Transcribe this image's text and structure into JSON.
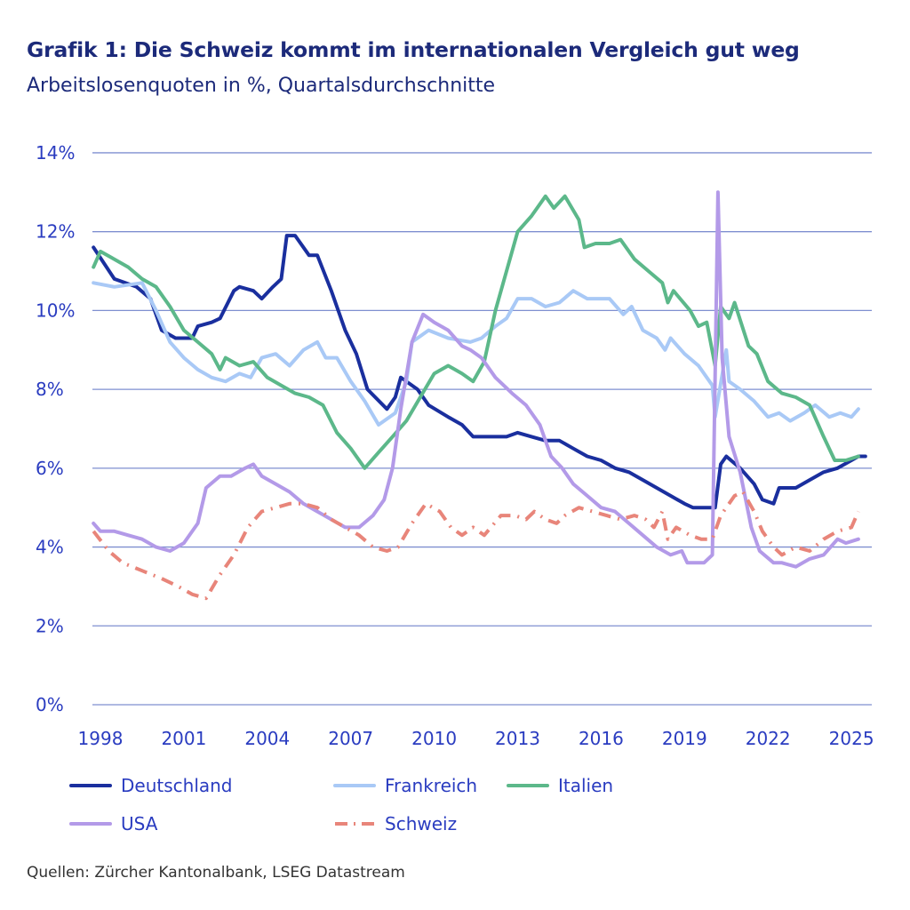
{
  "title": "Grafik 1: Die Schweiz kommt im internationalen Vergleich gut weg",
  "subtitle": "Arbeitslosenquoten in %, Quartalsdurchschnitte",
  "source": "Quellen: Zürcher Kantonalbank, LSEG Datastream",
  "chart_data": {
    "type": "line",
    "title": "Grafik 1: Die Schweiz kommt im internationalen Vergleich gut weg",
    "subtitle": "Arbeitslosenquoten in %, Quartalsdurchschnitte",
    "xlabel": "",
    "ylabel": "",
    "xlim": [
      1997.7,
      2025.5
    ],
    "ylim": [
      0,
      14
    ],
    "grid": true,
    "legend_position": "bottom",
    "x_ticks": [
      "1998",
      "2001",
      "2004",
      "2007",
      "2010",
      "2013",
      "2016",
      "2019",
      "2022",
      "2025"
    ],
    "y_ticks": [
      "0%",
      "2%",
      "4%",
      "6%",
      "8%",
      "10%",
      "12%",
      "14%"
    ],
    "series": [
      {
        "name": "Deutschland",
        "color": "#1a2f9e",
        "dash": "solid",
        "x": [
          1997.75,
          1998.5,
          1999.3,
          1999.8,
          2000.2,
          2000.7,
          2001.3,
          2001.5,
          2002,
          2002.3,
          2002.8,
          2003,
          2003.5,
          2003.8,
          2004.2,
          2004.5,
          2004.7,
          2005,
          2005.5,
          2005.8,
          2006.3,
          2006.8,
          2007.2,
          2007.6,
          2008.3,
          2008.6,
          2008.8,
          2009.4,
          2009.8,
          2010.5,
          2011,
          2011.4,
          2012,
          2012.6,
          2013,
          2013.5,
          2014,
          2014.5,
          2015,
          2015.5,
          2016,
          2016.5,
          2017,
          2017.5,
          2018,
          2018.5,
          2019,
          2019.3,
          2020.1,
          2020.3,
          2020.5,
          2021,
          2021.5,
          2021.8,
          2022.2,
          2022.4,
          2023,
          2023.5,
          2024,
          2024.5,
          2025,
          2025.25,
          2025.5
        ],
        "y": [
          11.6,
          10.8,
          10.6,
          10.3,
          9.5,
          9.3,
          9.3,
          9.6,
          9.7,
          9.8,
          10.5,
          10.6,
          10.5,
          10.3,
          10.6,
          10.8,
          11.9,
          11.9,
          11.4,
          11.4,
          10.5,
          9.5,
          8.9,
          8.0,
          7.5,
          7.8,
          8.3,
          8.0,
          7.6,
          7.3,
          7.1,
          6.8,
          6.8,
          6.8,
          6.9,
          6.8,
          6.7,
          6.7,
          6.5,
          6.3,
          6.2,
          6.0,
          5.9,
          5.7,
          5.5,
          5.3,
          5.1,
          5.0,
          5.0,
          6.1,
          6.3,
          6.0,
          5.6,
          5.2,
          5.1,
          5.5,
          5.5,
          5.7,
          5.9,
          6.0,
          6.2,
          6.3,
          6.3
        ]
      },
      {
        "name": "Frankreich",
        "color": "#a9c9f6",
        "dash": "solid",
        "x": [
          1997.75,
          1998.5,
          1999.5,
          2000,
          2000.5,
          2001,
          2001.5,
          2002,
          2002.5,
          2003,
          2003.4,
          2003.8,
          2004.3,
          2004.8,
          2005.3,
          2005.8,
          2006.1,
          2006.5,
          2007,
          2007.5,
          2008,
          2008.6,
          2009,
          2009.2,
          2009.8,
          2010.5,
          2011.3,
          2011.7,
          2012.2,
          2012.6,
          2013,
          2013.5,
          2014,
          2014.5,
          2015,
          2015.5,
          2016.3,
          2016.8,
          2017.1,
          2017.5,
          2018,
          2018.3,
          2018.5,
          2019,
          2019.5,
          2020,
          2020.1,
          2020.5,
          2020.6,
          2021,
          2021.5,
          2022,
          2022.4,
          2022.8,
          2023.3,
          2023.7,
          2024.2,
          2024.6,
          2025,
          2025.25
        ],
        "y": [
          10.7,
          10.6,
          10.7,
          10.0,
          9.2,
          8.8,
          8.5,
          8.3,
          8.2,
          8.4,
          8.3,
          8.8,
          8.9,
          8.6,
          9.0,
          9.2,
          8.8,
          8.8,
          8.2,
          7.7,
          7.1,
          7.4,
          8.2,
          9.2,
          9.5,
          9.3,
          9.2,
          9.3,
          9.6,
          9.8,
          10.3,
          10.3,
          10.1,
          10.2,
          10.5,
          10.3,
          10.3,
          9.9,
          10.1,
          9.5,
          9.3,
          9.0,
          9.3,
          8.9,
          8.6,
          8.1,
          7.3,
          9.0,
          8.2,
          8.0,
          7.7,
          7.3,
          7.4,
          7.2,
          7.4,
          7.6,
          7.3,
          7.4,
          7.3,
          7.5
        ]
      },
      {
        "name": "Italien",
        "color": "#5cb88a",
        "dash": "solid",
        "x": [
          1997.75,
          1998,
          1998.5,
          1999,
          1999.5,
          2000,
          2000.5,
          2001,
          2001.5,
          2002,
          2002.3,
          2002.5,
          2003,
          2003.5,
          2004,
          2004.5,
          2005,
          2005.5,
          2006,
          2006.5,
          2007,
          2007.5,
          2008,
          2008.5,
          2009,
          2009.5,
          2010,
          2010.5,
          2011,
          2011.4,
          2011.8,
          2012.2,
          2012.6,
          2013,
          2013.5,
          2014,
          2014.3,
          2014.7,
          2015.2,
          2015.4,
          2015.8,
          2016.3,
          2016.7,
          2017.2,
          2017.7,
          2018.2,
          2018.4,
          2018.6,
          2019.2,
          2019.5,
          2019.8,
          2020.1,
          2020.3,
          2020.6,
          2020.8,
          2021.3,
          2021.6,
          2022,
          2022.5,
          2023,
          2023.5,
          2024,
          2024.4,
          2024.8,
          2025.25
        ],
        "y": [
          11.1,
          11.5,
          11.3,
          11.1,
          10.8,
          10.6,
          10.1,
          9.5,
          9.2,
          8.9,
          8.5,
          8.8,
          8.6,
          8.7,
          8.3,
          8.1,
          7.9,
          7.8,
          7.6,
          6.9,
          6.5,
          6.0,
          6.4,
          6.8,
          7.2,
          7.8,
          8.4,
          8.6,
          8.4,
          8.2,
          8.7,
          10.0,
          11.0,
          12.0,
          12.4,
          12.9,
          12.6,
          12.9,
          12.3,
          11.6,
          11.7,
          11.7,
          11.8,
          11.3,
          11.0,
          10.7,
          10.2,
          10.5,
          10.0,
          9.6,
          9.7,
          8.6,
          10.1,
          9.8,
          10.2,
          9.1,
          8.9,
          8.2,
          7.9,
          7.8,
          7.6,
          6.8,
          6.2,
          6.2,
          6.3
        ]
      },
      {
        "name": "USA",
        "color": "#b39ae8",
        "dash": "solid",
        "x": [
          1997.75,
          1998,
          1998.5,
          1999,
          1999.5,
          2000,
          2000.5,
          2001,
          2001.5,
          2001.8,
          2002.3,
          2002.7,
          2003.2,
          2003.5,
          2003.8,
          2004.3,
          2004.8,
          2005.3,
          2005.8,
          2006.3,
          2006.8,
          2007.3,
          2007.8,
          2008.2,
          2008.5,
          2008.8,
          2009.2,
          2009.6,
          2010,
          2010.5,
          2011,
          2011.3,
          2011.7,
          2012.2,
          2012.8,
          2013.3,
          2013.8,
          2014.2,
          2014.6,
          2015,
          2015.5,
          2016,
          2016.5,
          2017,
          2017.5,
          2018,
          2018.5,
          2018.9,
          2019.1,
          2019.7,
          2020.0,
          2020.2,
          2020.35,
          2020.6,
          2021,
          2021.4,
          2021.7,
          2022.2,
          2022.5,
          2023,
          2023.5,
          2024,
          2024.5,
          2024.8,
          2025.25
        ],
        "y": [
          4.6,
          4.4,
          4.4,
          4.3,
          4.2,
          4.0,
          3.9,
          4.1,
          4.6,
          5.5,
          5.8,
          5.8,
          6.0,
          6.1,
          5.8,
          5.6,
          5.4,
          5.1,
          4.9,
          4.7,
          4.5,
          4.5,
          4.8,
          5.2,
          6.0,
          7.5,
          9.2,
          9.9,
          9.7,
          9.5,
          9.1,
          9.0,
          8.8,
          8.3,
          7.9,
          7.6,
          7.1,
          6.3,
          6.0,
          5.6,
          5.3,
          5.0,
          4.9,
          4.6,
          4.3,
          4.0,
          3.8,
          3.9,
          3.6,
          3.6,
          3.8,
          13.0,
          8.8,
          6.8,
          5.9,
          4.5,
          3.9,
          3.6,
          3.6,
          3.5,
          3.7,
          3.8,
          4.2,
          4.1,
          4.2
        ]
      },
      {
        "name": "Schweiz",
        "color": "#e8857a",
        "dash": "dashdot",
        "x": [
          1997.75,
          1998.3,
          1998.8,
          1999.5,
          2000.2,
          2000.8,
          2001.3,
          2001.8,
          2002.3,
          2002.8,
          2003.3,
          2003.8,
          2004.3,
          2004.8,
          2005.3,
          2005.8,
          2006.3,
          2006.8,
          2007.3,
          2007.8,
          2008.3,
          2008.7,
          2009.2,
          2009.7,
          2010.2,
          2010.6,
          2011,
          2011.4,
          2011.8,
          2012.4,
          2012.9,
          2013.3,
          2013.6,
          2014,
          2014.4,
          2014.7,
          2015.2,
          2015.7,
          2016.2,
          2016.7,
          2017.2,
          2017.6,
          2017.9,
          2018.2,
          2018.4,
          2018.7,
          2019.2,
          2019.6,
          2020,
          2020.3,
          2020.8,
          2021.1,
          2021.5,
          2021.8,
          2022.2,
          2022.5,
          2023,
          2023.5,
          2024,
          2024.5,
          2025,
          2025.25
        ],
        "y": [
          4.4,
          3.9,
          3.6,
          3.4,
          3.2,
          3.0,
          2.8,
          2.7,
          3.3,
          3.8,
          4.5,
          4.9,
          5.0,
          5.1,
          5.1,
          5.0,
          4.7,
          4.5,
          4.3,
          4.0,
          3.9,
          4.0,
          4.6,
          5.1,
          4.9,
          4.5,
          4.3,
          4.5,
          4.3,
          4.8,
          4.8,
          4.7,
          4.9,
          4.7,
          4.6,
          4.8,
          5.0,
          4.9,
          4.8,
          4.7,
          4.8,
          4.7,
          4.5,
          4.9,
          4.2,
          4.5,
          4.3,
          4.2,
          4.2,
          4.8,
          5.3,
          5.4,
          4.9,
          4.4,
          4.0,
          3.8,
          4.0,
          3.9,
          4.2,
          4.4,
          4.5,
          4.9
        ]
      }
    ]
  }
}
